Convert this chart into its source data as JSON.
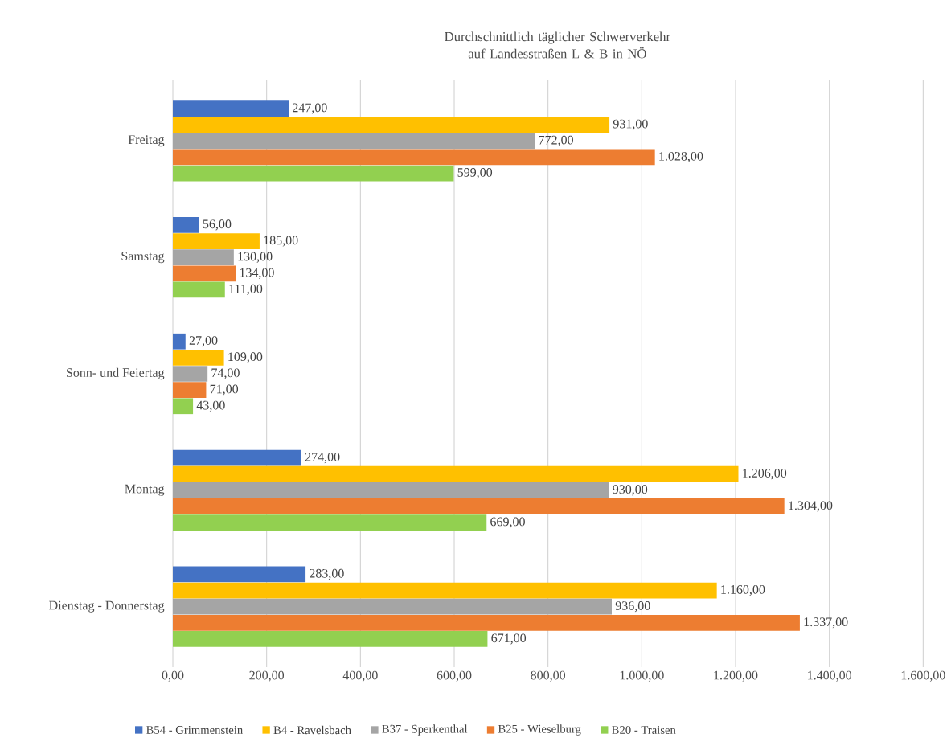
{
  "chart_data": {
    "type": "bar",
    "orientation": "horizontal",
    "title": "Durchschnittlich täglicher Schwerverkehr auf Landesstraßen L & B in NÖ",
    "categories": [
      "Freitag",
      "Samstag",
      "Sonn- und Feiertag",
      "Montag",
      "Dienstag - Donnerstag"
    ],
    "series": [
      {
        "name": "B54 - Grimmenstein",
        "color": "#4472c4",
        "values": [
          247,
          56,
          27,
          274,
          283
        ],
        "value_labels": [
          "247,00",
          "56,00",
          "27,00",
          "274,00",
          "283,00"
        ]
      },
      {
        "name": "B4 - Ravelsbach",
        "color": "#ffc000",
        "values": [
          931,
          185,
          109,
          1206,
          1160
        ],
        "value_labels": [
          "931,00",
          "185,00",
          "109,00",
          "1.206,00",
          "1.160,00"
        ]
      },
      {
        "name": "B37 - Sperkenthal",
        "color": "#a5a5a5",
        "values": [
          772,
          130,
          74,
          930,
          936
        ],
        "value_labels": [
          "772,00",
          "130,00",
          "74,00",
          "930,00",
          "936,00"
        ]
      },
      {
        "name": "B25 - Wieselburg",
        "color": "#ed7d31",
        "values": [
          1028,
          134,
          71,
          1304,
          1337
        ],
        "value_labels": [
          "1.028,00",
          "134,00",
          "71,00",
          "1.304,00",
          "1.337,00"
        ]
      },
      {
        "name": "B20 - Traisen",
        "color": "#92d050",
        "values": [
          599,
          111,
          43,
          669,
          671
        ],
        "value_labels": [
          "599,00",
          "111,00",
          "43,00",
          "669,00",
          "671,00"
        ]
      }
    ],
    "xlim": [
      0,
      1600
    ],
    "xticks": [
      {
        "value": 0,
        "label": "0,00"
      },
      {
        "value": 200,
        "label": "200,00"
      },
      {
        "value": 400,
        "label": "400,00"
      },
      {
        "value": 600,
        "label": "600,00"
      },
      {
        "value": 800,
        "label": "800,00"
      },
      {
        "value": 1000,
        "label": "1.000,00"
      },
      {
        "value": 1200,
        "label": "1.200,00"
      },
      {
        "value": 1400,
        "label": "1.400,00"
      },
      {
        "value": 1600,
        "label": "1.600,00"
      }
    ],
    "grid": "x",
    "legend": "bottom"
  }
}
